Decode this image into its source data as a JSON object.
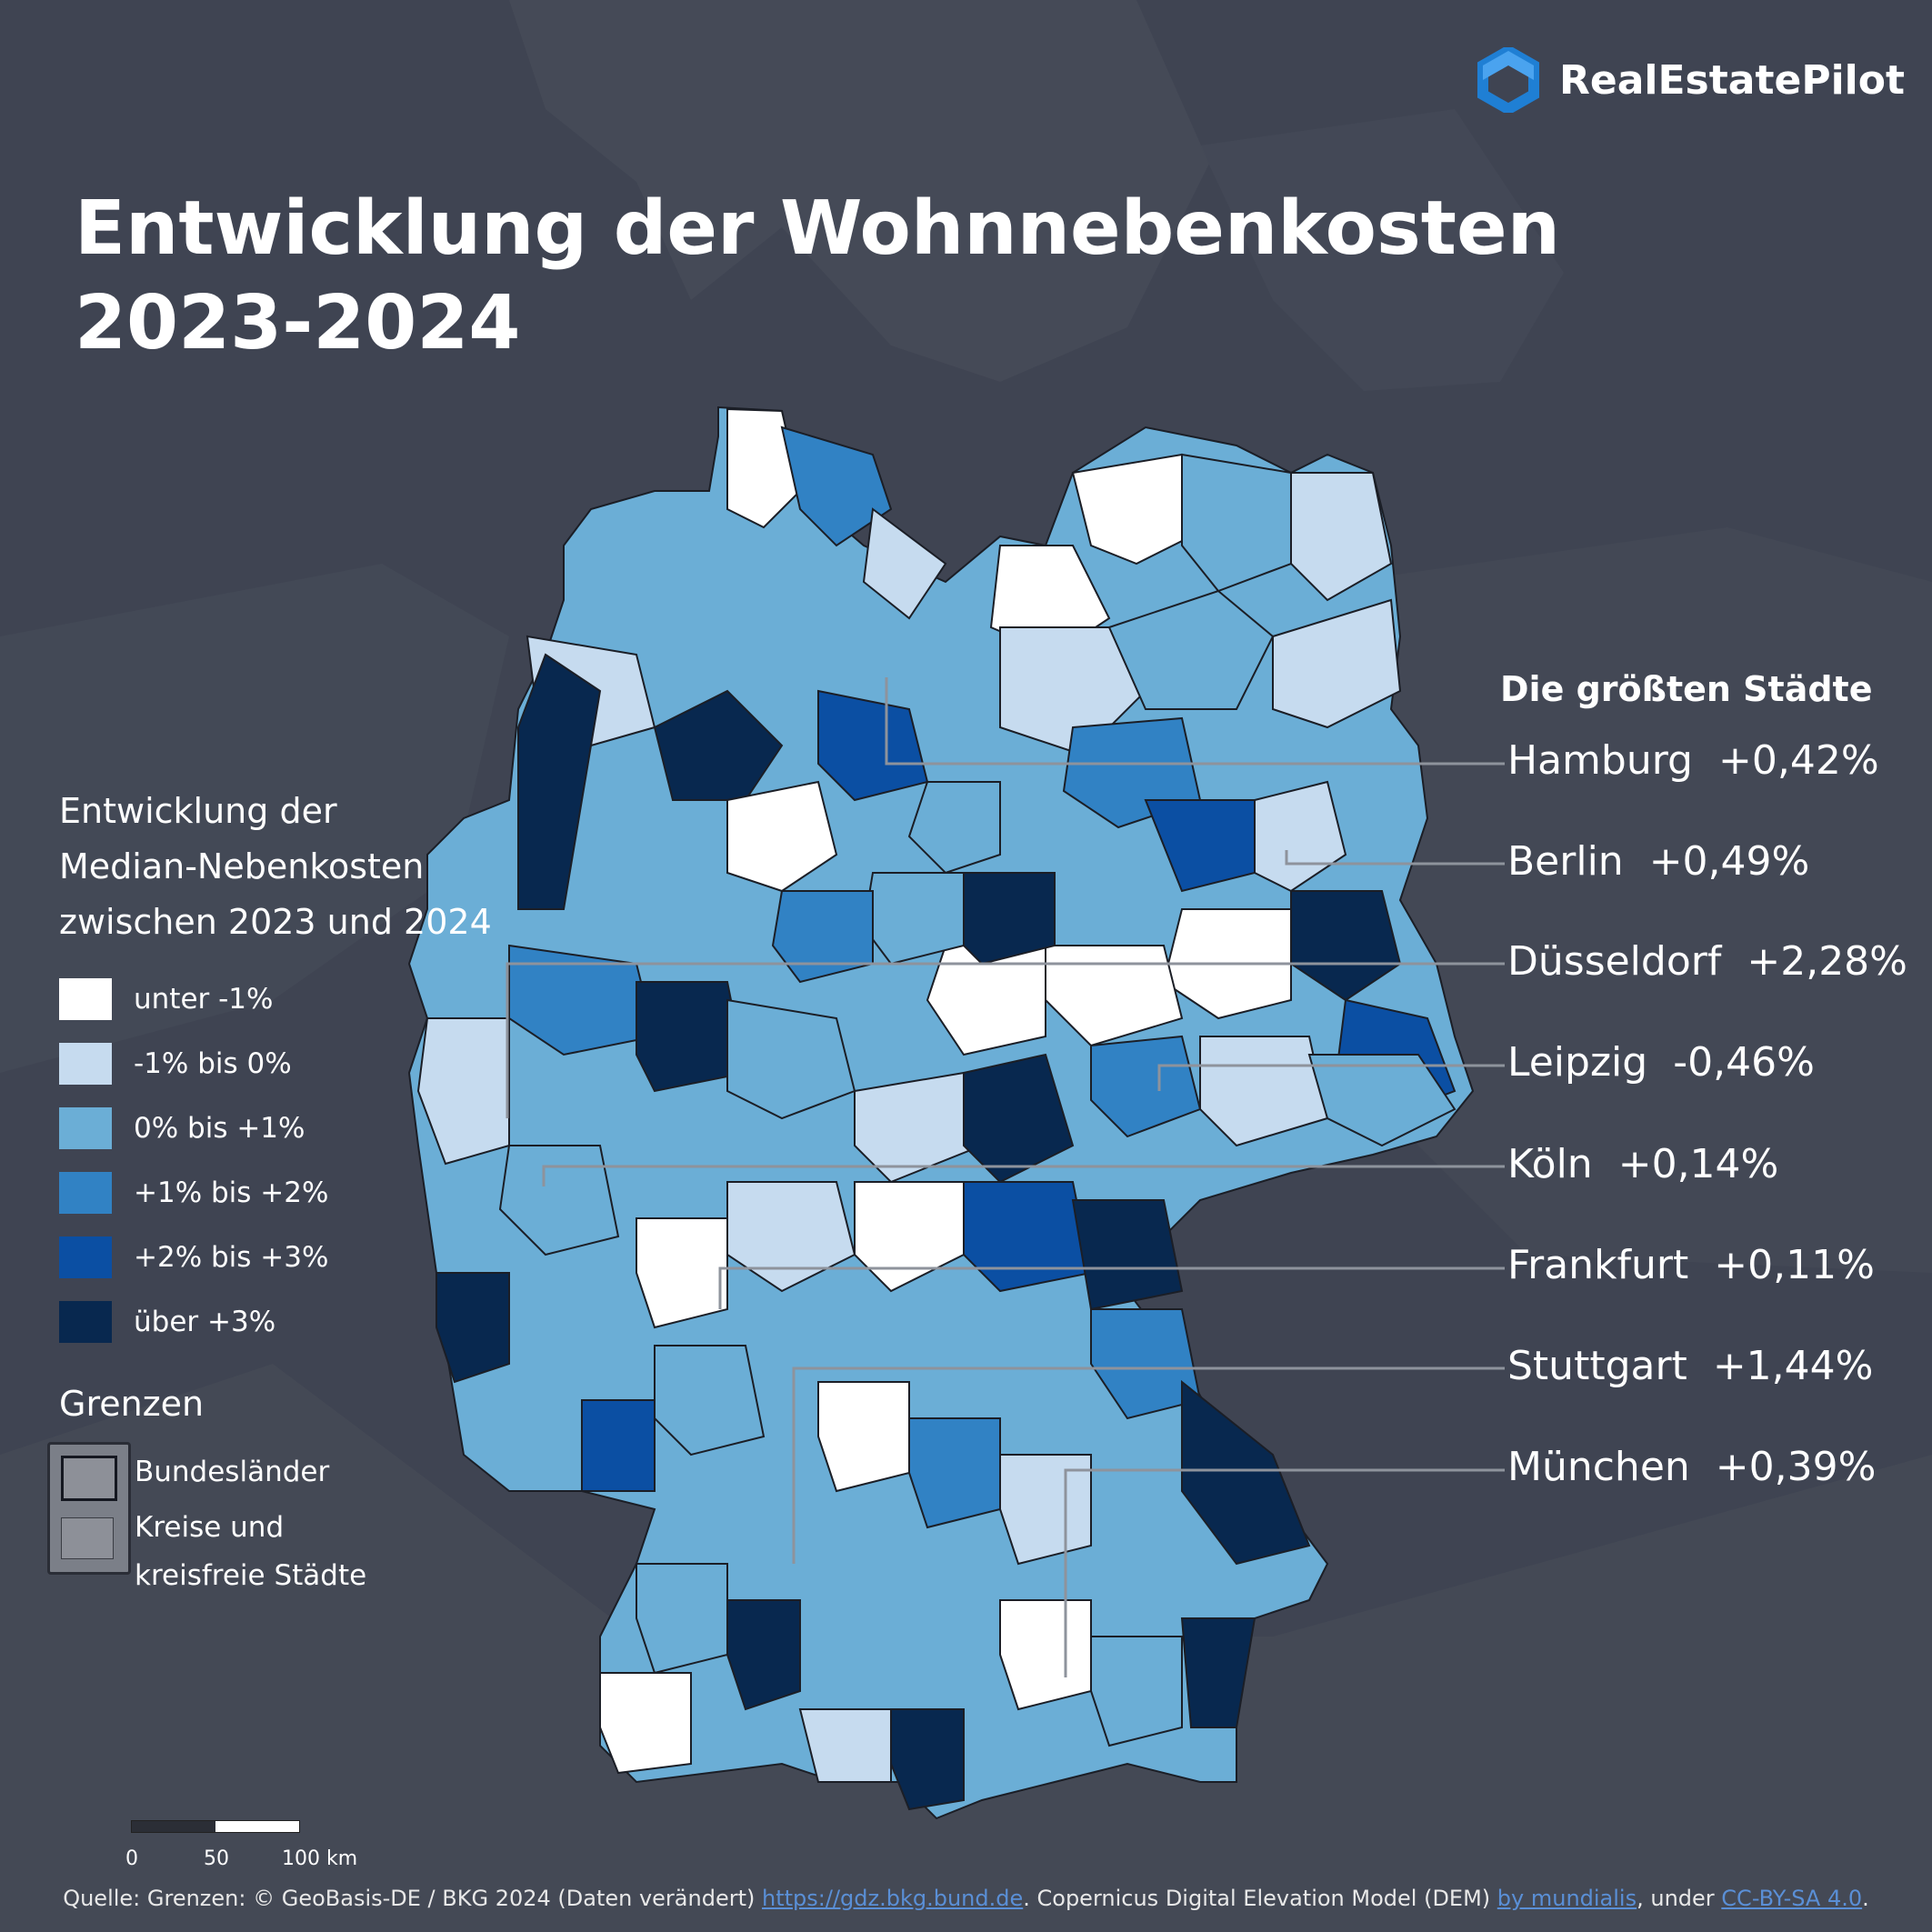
{
  "brand": {
    "name": "RealEstatePilot",
    "icon": "hexagon-logo-icon",
    "color": "#1f7fd4"
  },
  "title": {
    "line1": "Entwicklung der Wohnnebenkosten",
    "line2": "2023-2024"
  },
  "legend": {
    "title_lines": [
      "Entwicklung der",
      "Median-Nebenkosten",
      "zwischen 2023 und 2024"
    ],
    "classes": [
      {
        "label": "unter -1%",
        "color": "#ffffff"
      },
      {
        "label": "-1% bis 0%",
        "color": "#c6dbef"
      },
      {
        "label": "0% bis +1%",
        "color": "#6baed6"
      },
      {
        "label": "+1% bis +2%",
        "color": "#3182c4"
      },
      {
        "label": "+2% bis +3%",
        "color": "#0b4fa3"
      },
      {
        "label": "über +3%",
        "color": "#08284f"
      }
    ]
  },
  "borders": {
    "title": "Grenzen",
    "states_label": "Bundesländer",
    "districts_label_line1": "Kreise und",
    "districts_label_line2": "kreisfreie Städte"
  },
  "cities": {
    "title": "Die größten Städte",
    "items": [
      {
        "name": "Hamburg",
        "value": "+0,42%"
      },
      {
        "name": "Berlin",
        "value": "+0,49%"
      },
      {
        "name": "Düsseldorf",
        "value": "+2,28%"
      },
      {
        "name": "Leipzig",
        "value": "-0,46%"
      },
      {
        "name": "Köln",
        "value": "+0,14%"
      },
      {
        "name": "Frankfurt",
        "value": "+0,11%"
      },
      {
        "name": "Stuttgart",
        "value": "+1,44%"
      },
      {
        "name": "München",
        "value": "+0,39%"
      }
    ]
  },
  "scale": {
    "ticks": [
      "0",
      "50",
      "100 km"
    ]
  },
  "source": {
    "prefix": "Quelle: Grenzen: © GeoBasis-DE / BKG 2024 (Daten verändert) ",
    "link1": "https://gdz.bkg.bund.de",
    "middle": ". Copernicus Digital Elevation Model (DEM) ",
    "link2": "by mundialis",
    "middle2": ", under ",
    "link3": "CC-BY-SA 4.0",
    "suffix": "."
  }
}
